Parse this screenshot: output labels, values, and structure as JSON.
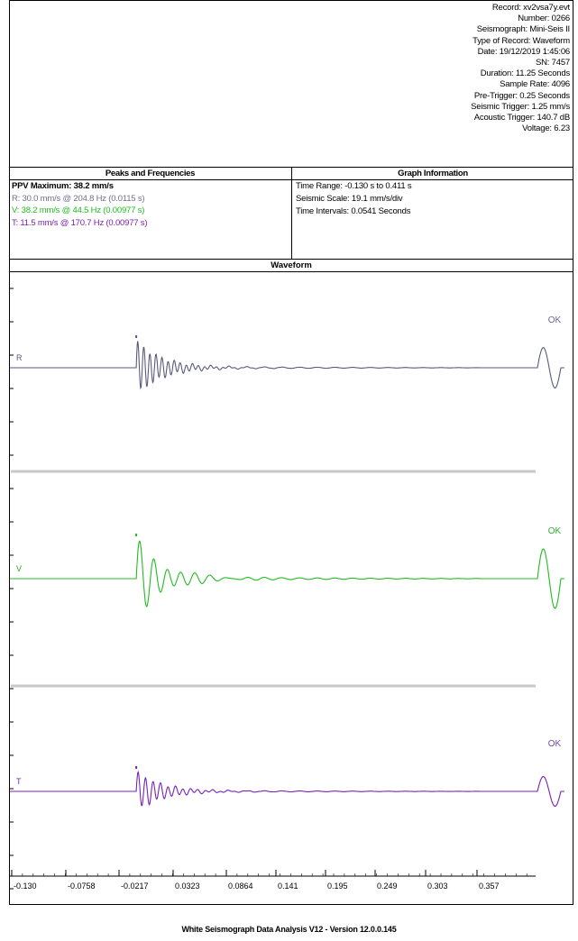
{
  "record_info": [
    "Record: xv2vsa7y.evt",
    "Number: 0266",
    "Seismograph: Mini-Seis II",
    "Type of Record: Waveform",
    "Date: 19/12/2019 1:45:06",
    "SN: 7457",
    "Duration: 11.25 Seconds",
    "Sample Rate: 4096",
    "Pre-Trigger: 0.25 Seconds",
    "Seismic Trigger: 1.25 mm/s",
    "Acoustic Trigger: 140.7 dB",
    "Voltage: 6.23"
  ],
  "peaks": {
    "title": "Peaks and Frequencies",
    "ppv": "PPV Maximum: 38.2 mm/s",
    "lines": [
      {
        "text": "R: 30.0 mm/s @ 204.8 Hz  (0.0115 s)",
        "color": "#6f6f8f"
      },
      {
        "text": "V: 38.2 mm/s @ 44.5 Hz  (0.00977 s)",
        "color": "#22bb22"
      },
      {
        "text": "T: 11.5 mm/s @ 170.7 Hz  (0.00977 s)",
        "color": "#7a22aa"
      }
    ]
  },
  "graph_info": {
    "title": "Graph Information",
    "lines": [
      "Time Range: -0.130 s to 0.411 s",
      "Seismic Scale: 19.1 mm/s/div",
      "Time Intervals: 0.0541 Seconds"
    ]
  },
  "chart_data": {
    "type": "line",
    "title": "Waveform",
    "xlim": [
      -0.13,
      0.411
    ],
    "x_ticks": [
      "-0.130",
      "-0.0758",
      "-0.0217",
      "0.0323",
      "0.0864",
      "0.141",
      "0.195",
      "0.249",
      "0.303",
      "0.357"
    ],
    "series": [
      {
        "name": "R",
        "color": "#5a5a80",
        "status": "OK",
        "status_color": "#6a6a9a",
        "peak_mm_s": 30.0,
        "peak_time_s": 0.0115,
        "freq_hz": 204.8
      },
      {
        "name": "V",
        "color": "#22bb22",
        "status": "OK",
        "status_color": "#33aa33",
        "peak_mm_s": 38.2,
        "peak_time_s": 0.00977,
        "freq_hz": 44.5
      },
      {
        "name": "T",
        "color": "#7722bb",
        "status": "OK",
        "status_color": "#6a4aaa",
        "peak_mm_s": 11.5,
        "peak_time_s": 0.00977,
        "freq_hz": 170.7
      }
    ],
    "grid": false,
    "legend": "left"
  },
  "footer": "White Seismograph Data Analysis V12 - Version 12.0.0.145"
}
